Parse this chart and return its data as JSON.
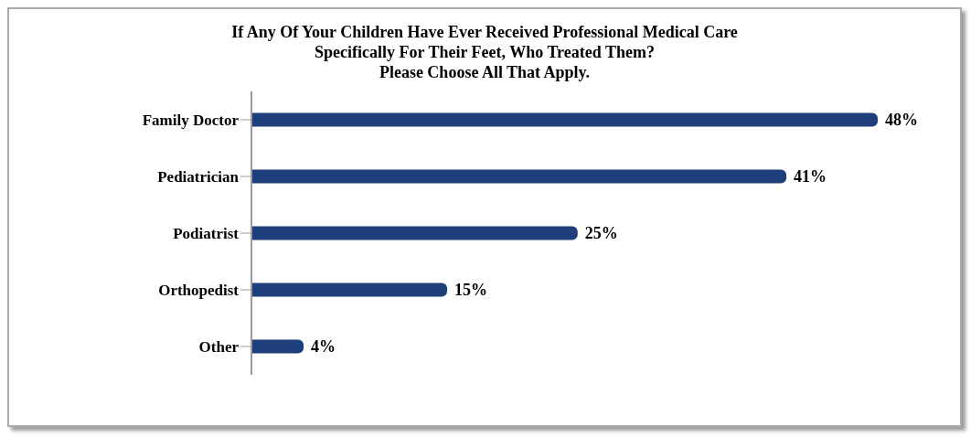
{
  "chart_data": {
    "type": "bar",
    "orientation": "horizontal",
    "title": "If Any Of Your Children Have Ever Received Professional Medical Care\nSpecifically For Their Feet, Who Treated Them?\nPlease Choose All That Apply.",
    "categories": [
      "Family Doctor",
      "Pediatrician",
      "Podiatrist",
      "Orthopedist",
      "Other"
    ],
    "values": [
      48,
      41,
      25,
      15,
      4
    ],
    "value_labels": [
      "48%",
      "41%",
      "25%",
      "15%",
      "4%"
    ],
    "color": "#1f3f7a"
  }
}
